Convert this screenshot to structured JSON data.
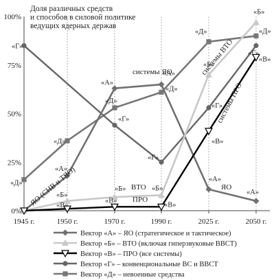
{
  "chart_data": {
    "type": "line",
    "title": "Доля различных средств и способов в силовой политике ведущих ядерных держав",
    "categories": [
      "1945 г.",
      "1950 г.",
      "1970 г.",
      "1990 г.",
      "2025 г.",
      "2050 г."
    ],
    "y_ticks": [
      "0%",
      "25%",
      "50%",
      "75%",
      "100%"
    ],
    "ylim": [
      0,
      100
    ],
    "grid": "vertical dashed",
    "legend_position": "bottom",
    "series": [
      {
        "key": "A",
        "name": "Вектор «А» – ЯО (стратегическое и тактическое)",
        "point_label": "«А»",
        "color": "#707070",
        "marker": "diamond",
        "values": [
          0,
          18,
          63,
          65,
          11,
          5
        ]
      },
      {
        "key": "B",
        "name": "Вектор «Б» – ВТО (включая гиперзвуковые ВВСТ)",
        "point_label": "«Б»",
        "color": "#c8c8c8",
        "marker": "triangle-up",
        "values": [
          0,
          5,
          7,
          8,
          70,
          97
        ]
      },
      {
        "key": "V",
        "name": "Вектор «В» – ПРО (все системы)",
        "point_label": "«В»",
        "color": "#000000",
        "marker": "triangle-down-open",
        "values": [
          0,
          1,
          2,
          2,
          41,
          79
        ]
      },
      {
        "key": "G",
        "name": "Вектор «Г» – конвенциональные ВС и ВВСТ",
        "point_label": "«Г»",
        "color": "#666666",
        "marker": "circle",
        "values": [
          85,
          null,
          44,
          25,
          53,
          85
        ]
      },
      {
        "key": "D",
        "name": "Вектор «Д» – невоенные средства",
        "point_label": "«Д»",
        "color": "#777777",
        "marker": "square",
        "values": [
          16,
          36,
          53,
          61,
          87,
          90
        ]
      }
    ],
    "annotations": [
      "ЯО (СНВ и ТЯО)",
      "системы ЯО",
      "ВТО",
      "ПРО",
      "системы ВТО",
      "системы ПРО",
      "ЯО"
    ]
  }
}
